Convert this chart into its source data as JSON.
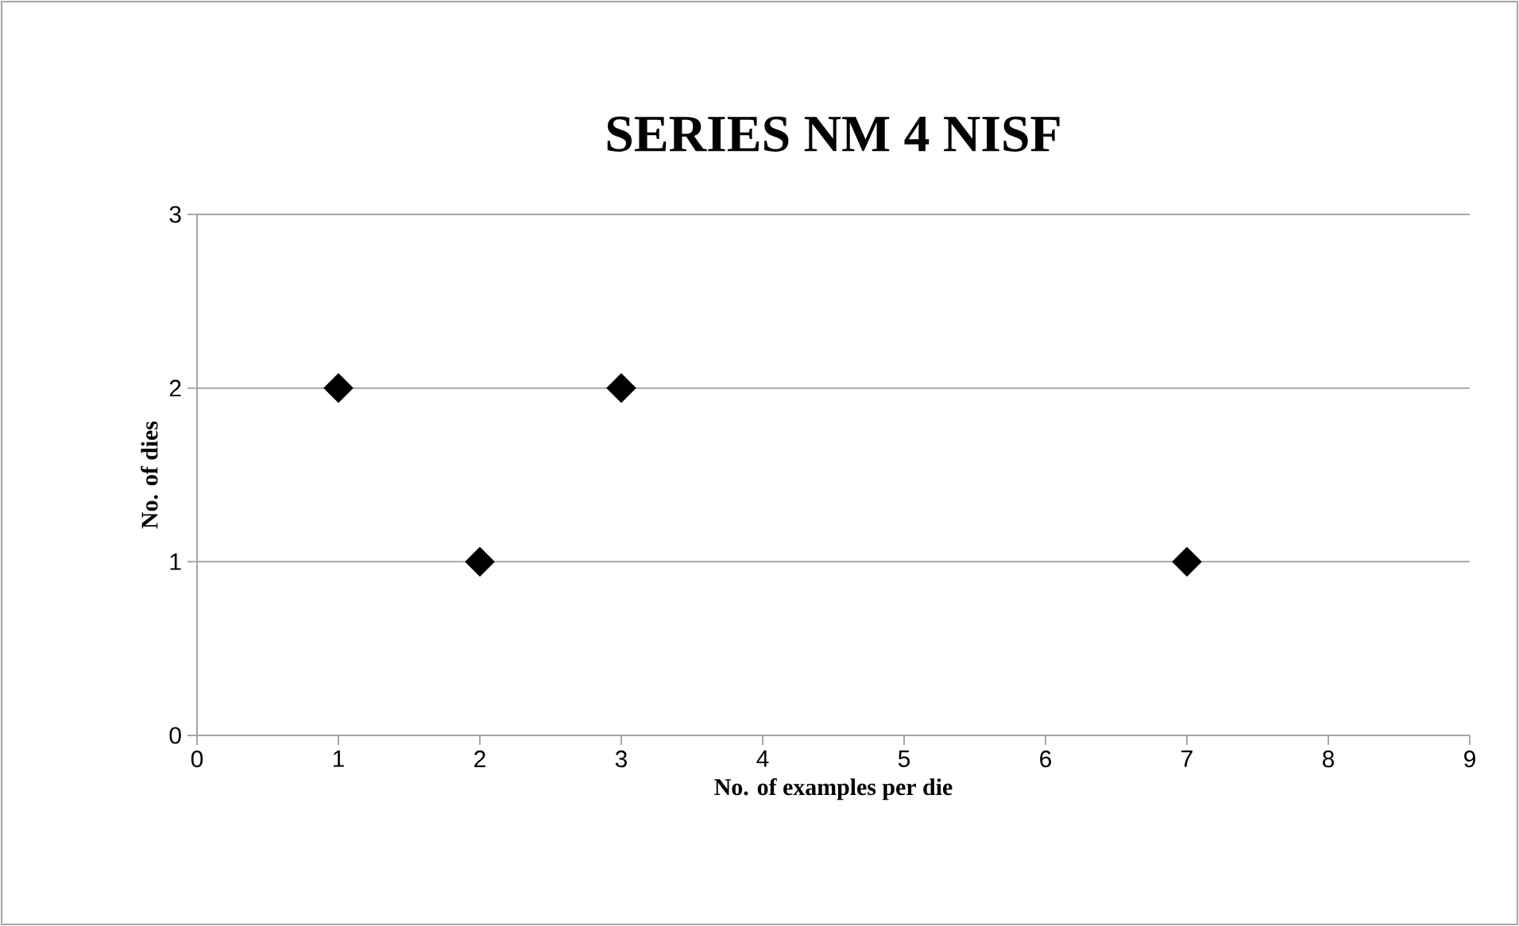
{
  "chart_data": {
    "type": "scatter",
    "title": "SERIES NM 4 NISF",
    "xlabel": "No. of examples per die",
    "ylabel": "No. of dies",
    "x": [
      1,
      2,
      3,
      7
    ],
    "series": [
      {
        "color": "#000000",
        "values": [
          2,
          1,
          2,
          1
        ]
      }
    ],
    "xlim": [
      0,
      9
    ],
    "xticks": [
      0,
      1,
      2,
      3,
      4,
      5,
      6,
      7,
      8,
      9
    ],
    "ylim": [
      0,
      3
    ],
    "yticks": [
      0,
      1,
      2,
      3
    ],
    "grid": "y",
    "marker": "diamond"
  }
}
